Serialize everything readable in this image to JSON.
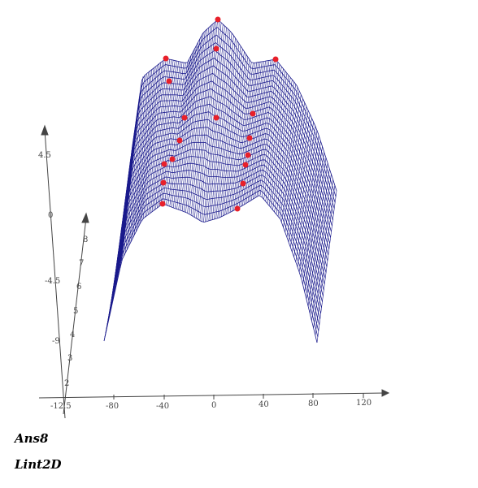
{
  "colors": {
    "surface": "#1a1a8c",
    "marker": "#e8202a",
    "axis": "#444444"
  },
  "axes": {
    "x_ticks": [
      "-80",
      "-40",
      "0",
      "40",
      "80",
      "120"
    ],
    "x_extra_ticks": [
      "-12.5"
    ],
    "z_ticks": [
      "4.5",
      "0",
      "-4.5",
      "-9"
    ],
    "y_ticks": [
      "2",
      "3",
      "4",
      "5",
      "6",
      "7",
      "8"
    ]
  },
  "output": {
    "ans": "Ans8",
    "lint": "Lint2D"
  }
}
